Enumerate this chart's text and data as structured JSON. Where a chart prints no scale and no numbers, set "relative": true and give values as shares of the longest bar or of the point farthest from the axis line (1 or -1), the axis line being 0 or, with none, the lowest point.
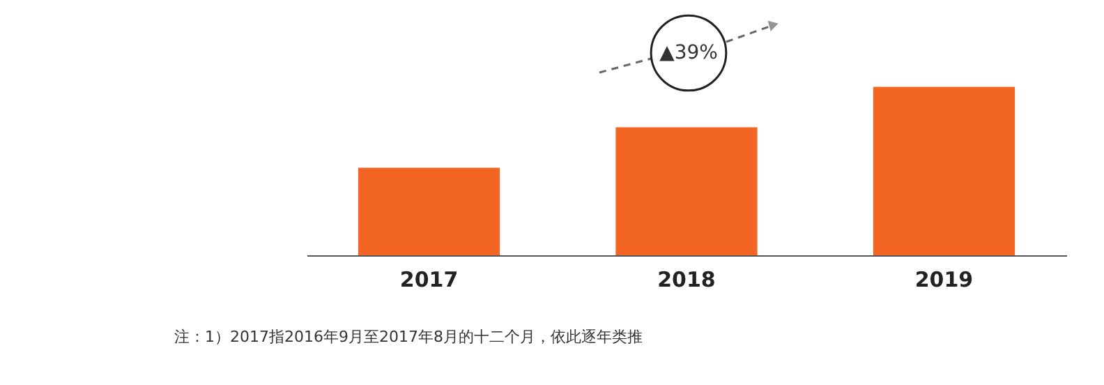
{
  "chart_data": {
    "type": "bar",
    "relative": true,
    "categories": [
      "2017",
      "2018",
      "2019"
    ],
    "values": [
      0.52,
      0.76,
      1
    ],
    "color": "#f26522",
    "grid": false,
    "annotations": [
      "▲39%",
      "注：1）2017指2016年9月至2017年8月的十二个月，依此逐年类推"
    ]
  }
}
